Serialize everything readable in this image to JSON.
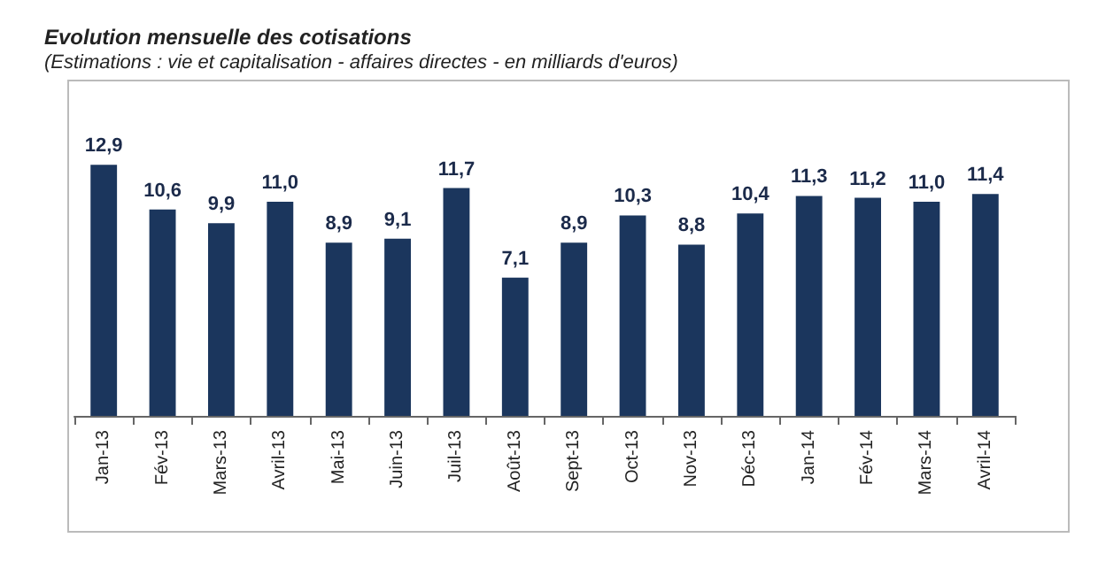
{
  "chart_data": {
    "type": "bar",
    "title": "Evolution mensuelle des cotisations",
    "subtitle": "(Estimations : vie et capitalisation - affaires directes - en milliards d'euros)",
    "categories": [
      "Jan-13",
      "Fév-13",
      "Mars-13",
      "Avril-13",
      "Mai-13",
      "Juin-13",
      "Juil-13",
      "Août-13",
      "Sept-13",
      "Oct-13",
      "Nov-13",
      "Déc-13",
      "Jan-14",
      "Fév-14",
      "Mars-14",
      "Avril-14"
    ],
    "values": [
      12.9,
      10.6,
      9.9,
      11.0,
      8.9,
      9.1,
      11.7,
      7.1,
      8.9,
      10.3,
      8.8,
      10.4,
      11.3,
      11.2,
      11.0,
      11.4
    ],
    "value_labels": [
      "12,9",
      "10,6",
      "9,9",
      "11,0",
      "8,9",
      "9,1",
      "11,7",
      "7,1",
      "8,9",
      "10,3",
      "8,8",
      "10,4",
      "11,3",
      "11,2",
      "11,0",
      "11,4"
    ],
    "color": "#1b365d",
    "tick_labels": "x"
  }
}
